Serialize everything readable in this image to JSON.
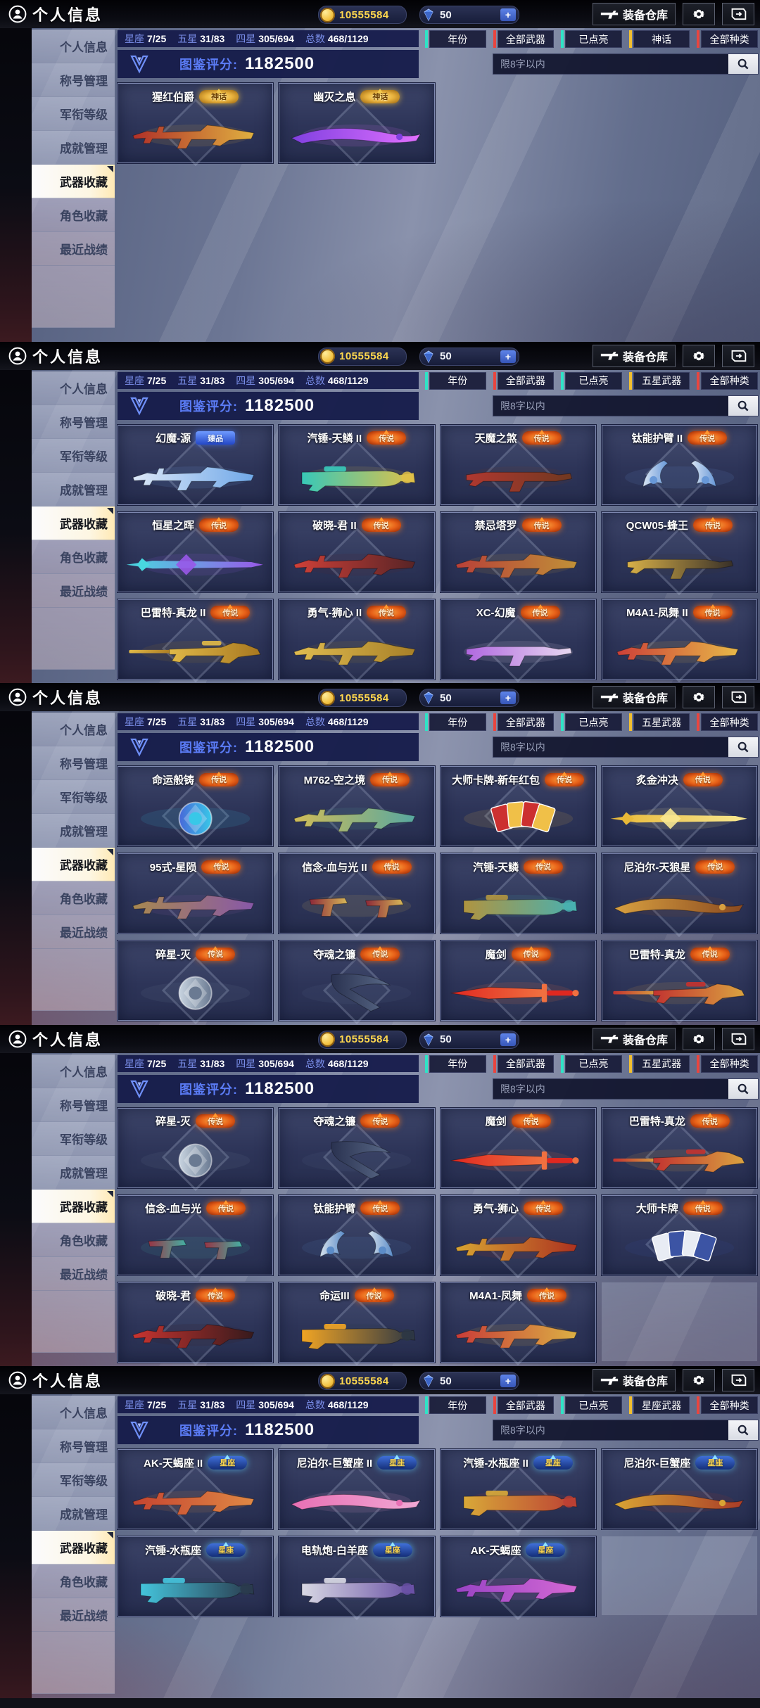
{
  "header": {
    "title": "个人信息",
    "coins": "10555584",
    "diamonds": "50",
    "plus_label": "+",
    "warehouse_label": "装备仓库"
  },
  "icons": {
    "profile": "person-circle",
    "coin": "gold-coin",
    "diamond": "blue-gem",
    "warehouse": "gun",
    "settings": "gear",
    "exit": "door-arrow",
    "search": "magnifier",
    "score": "v-shield"
  },
  "sidebar": {
    "items": [
      {
        "label": "个人信息",
        "active": false
      },
      {
        "label": "称号管理",
        "active": false
      },
      {
        "label": "军衔等级",
        "active": false
      },
      {
        "label": "成就管理",
        "active": false
      },
      {
        "label": "武器收藏",
        "active": true
      },
      {
        "label": "角色收藏",
        "active": false
      },
      {
        "label": "最近战绩",
        "active": false
      }
    ]
  },
  "stats": [
    {
      "label": "星座",
      "value": "7/25"
    },
    {
      "label": "五星",
      "value": "31/83"
    },
    {
      "label": "四星",
      "value": "305/694"
    },
    {
      "label": "总数",
      "value": "468/1129"
    }
  ],
  "score": {
    "label": "图鉴评分:",
    "value": "1182500"
  },
  "search": {
    "placeholder": "限8字以内"
  },
  "ui_colors": {
    "accent_teal": "#2fe3c6",
    "accent_red": "#e8453f",
    "accent_yellow": "#f2bf2f",
    "panel_navy": "#151b4a",
    "score_label": "#5b7cf6",
    "coin_text": "#ffd84e"
  },
  "panels": [
    {
      "filters": [
        {
          "label": "年份",
          "accent": "#2fe3c6"
        },
        {
          "label": "全部武器",
          "accent": "#e8453f"
        },
        {
          "label": "已点亮",
          "accent": "#2fe3c6"
        },
        {
          "label": "神话",
          "accent": "#f2bf2f"
        },
        {
          "label": "全部种类",
          "accent": "#e8453f"
        }
      ],
      "rows": [
        [
          {
            "name": "猩红伯爵",
            "badge": "神话",
            "shape": "rifle",
            "c1": "#b03028",
            "c2": "#e0b040"
          },
          {
            "name": "幽灭之息",
            "badge": "神话",
            "shape": "blade",
            "c1": "#8040e0",
            "c2": "#e070ff"
          }
        ]
      ]
    },
    {
      "filters": [
        {
          "label": "年份",
          "accent": "#2fe3c6"
        },
        {
          "label": "全部武器",
          "accent": "#e8453f"
        },
        {
          "label": "已点亮",
          "accent": "#2fe3c6"
        },
        {
          "label": "五星武器",
          "accent": "#f2bf2f"
        },
        {
          "label": "全部种类",
          "accent": "#e8453f"
        }
      ],
      "rows": [
        [
          {
            "name": "幻魔-源",
            "badge": "臻品",
            "shape": "rifle",
            "c1": "#dce8f8",
            "c2": "#70a8e8"
          },
          {
            "name": "汽锤-天鳞 II",
            "badge": "传说",
            "shape": "launcher",
            "c1": "#38c8b8",
            "c2": "#e0c048"
          },
          {
            "name": "天魔之煞",
            "badge": "传说",
            "shape": "smg",
            "c1": "#b03830",
            "c2": "#703820"
          },
          {
            "name": "钛能护臂 II",
            "badge": "传说",
            "shape": "bracers",
            "c1": "#d8e4f4",
            "c2": "#6898d8"
          }
        ],
        [
          {
            "name": "恒星之晖",
            "badge": "传说",
            "shape": "spear",
            "c1": "#48d8e0",
            "c2": "#9858e8"
          },
          {
            "name": "破晓-君 II",
            "badge": "传说",
            "shape": "rifle",
            "c1": "#d04038",
            "c2": "#582426"
          },
          {
            "name": "禁忌塔罗",
            "badge": "传说",
            "shape": "rifle",
            "c1": "#b84038",
            "c2": "#c09038"
          },
          {
            "name": "QCW05-蜂王",
            "badge": "传说",
            "shape": "smg",
            "c1": "#d8b048",
            "c2": "#383028"
          }
        ],
        [
          {
            "name": "巴雷特-真龙 II",
            "badge": "传说",
            "shape": "sniper",
            "c1": "#e0b848",
            "c2": "#a87820"
          },
          {
            "name": "勇气-狮心 II",
            "badge": "传说",
            "shape": "rifle",
            "c1": "#e0bc50",
            "c2": "#a88028"
          },
          {
            "name": "XC-幻魔",
            "badge": "传说",
            "shape": "smg",
            "c1": "#b068e0",
            "c2": "#e8d8f0"
          },
          {
            "name": "M4A1-凤舞 II",
            "badge": "传说",
            "shape": "rifle",
            "c1": "#cc4038",
            "c2": "#e8b848"
          }
        ]
      ]
    },
    {
      "filters": [
        {
          "label": "年份",
          "accent": "#2fe3c6"
        },
        {
          "label": "全部武器",
          "accent": "#e8453f"
        },
        {
          "label": "已点亮",
          "accent": "#2fe3c6"
        },
        {
          "label": "五星武器",
          "accent": "#f2bf2f"
        },
        {
          "label": "全部种类",
          "accent": "#e8453f"
        }
      ],
      "rows": [
        [
          {
            "name": "命运般铸",
            "badge": "传说",
            "shape": "orb",
            "c1": "#4868d8",
            "c2": "#38c8e8"
          },
          {
            "name": "M762-空之境",
            "badge": "传说",
            "shape": "rifle",
            "c1": "#d0bc58",
            "c2": "#58a8a0"
          },
          {
            "name": "大师卡牌-新年红包",
            "badge": "传说",
            "shape": "cards",
            "c1": "#cc3030",
            "c2": "#f0c048"
          },
          {
            "name": "炙金冲决",
            "badge": "传说",
            "shape": "spear",
            "c1": "#e8b838",
            "c2": "#f8e890"
          }
        ],
        [
          {
            "name": "95式-星陨",
            "badge": "传说",
            "shape": "rifle",
            "c1": "#a88850",
            "c2": "#8858a8"
          },
          {
            "name": "信念-血与光 II",
            "badge": "传说",
            "shape": "pistols",
            "c1": "#8c2838",
            "c2": "#d8b858"
          },
          {
            "name": "汽锤-天鳞",
            "badge": "传说",
            "shape": "launcher",
            "c1": "#b09440",
            "c2": "#48b0b0"
          },
          {
            "name": "尼泊尔-天狼星",
            "badge": "传说",
            "shape": "blade",
            "c1": "#d8a040",
            "c2": "#8a4a20"
          }
        ],
        [
          {
            "name": "碎星-灭",
            "badge": "传说",
            "shape": "orb",
            "c1": "#c8d4e0",
            "c2": "#6a7a92"
          },
          {
            "name": "夺魂之镰",
            "badge": "传说",
            "shape": "scythe",
            "c1": "#2a3250",
            "c2": "#5a6a88"
          },
          {
            "name": "魔剑",
            "badge": "传说",
            "shape": "sword",
            "c1": "#e02820",
            "c2": "#f07040"
          },
          {
            "name": "巴雷特-真龙",
            "badge": "传说",
            "shape": "sniper",
            "c1": "#c23330",
            "c2": "#daa340"
          }
        ]
      ]
    },
    {
      "filters": [
        {
          "label": "年份",
          "accent": "#2fe3c6"
        },
        {
          "label": "全部武器",
          "accent": "#e8453f"
        },
        {
          "label": "已点亮",
          "accent": "#2fe3c6"
        },
        {
          "label": "五星武器",
          "accent": "#f2bf2f"
        },
        {
          "label": "全部种类",
          "accent": "#e8453f"
        }
      ],
      "rows": [
        [
          {
            "name": "碎星-灭",
            "badge": "传说",
            "shape": "orb",
            "c1": "#c8d4e0",
            "c2": "#6a7a92"
          },
          {
            "name": "夺魂之镰",
            "badge": "传说",
            "shape": "scythe",
            "c1": "#2a3250",
            "c2": "#5a6a88"
          },
          {
            "name": "魔剑",
            "badge": "传说",
            "shape": "sword",
            "c1": "#e02820",
            "c2": "#f07040"
          },
          {
            "name": "巴雷特-真龙",
            "badge": "传说",
            "shape": "sniper",
            "c1": "#c23330",
            "c2": "#daa340"
          }
        ],
        [
          {
            "name": "信念-血与光",
            "badge": "传说",
            "shape": "pistols",
            "c1": "#983444",
            "c2": "#44b0a4"
          },
          {
            "name": "钛能护臂",
            "badge": "传说",
            "shape": "bracers",
            "c1": "#d4e0ec",
            "c2": "#5c8cc8"
          },
          {
            "name": "勇气-狮心",
            "badge": "传说",
            "shape": "rifle",
            "c1": "#d8a432",
            "c2": "#ac3220"
          },
          {
            "name": "大师卡牌",
            "badge": "传说",
            "shape": "cards",
            "c1": "#e8ecf4",
            "c2": "#3c54a4"
          }
        ],
        [
          {
            "name": "破晓-君",
            "badge": "传说",
            "shape": "rifle",
            "c1": "#c83430",
            "c2": "#361a1c"
          },
          {
            "name": "命运III",
            "badge": "传说",
            "shape": "launcher",
            "c1": "#f0a424",
            "c2": "#2c3644"
          },
          {
            "name": "M4A1-凤舞",
            "badge": "传说",
            "shape": "rifle",
            "c1": "#c83c38",
            "c2": "#dcb044"
          },
          {
            "empty": true
          }
        ]
      ]
    },
    {
      "filters": [
        {
          "label": "年份",
          "accent": "#2fe3c6"
        },
        {
          "label": "全部武器",
          "accent": "#e8453f"
        },
        {
          "label": "已点亮",
          "accent": "#2fe3c6"
        },
        {
          "label": "星座武器",
          "accent": "#f2bf2f"
        },
        {
          "label": "全部种类",
          "accent": "#e8453f"
        }
      ],
      "rows": [
        [
          {
            "name": "AK-天蝎座 II",
            "badge": "星座",
            "shape": "rifle",
            "c1": "#c44430",
            "c2": "#e08844"
          },
          {
            "name": "尼泊尔-巨蟹座 II",
            "badge": "星座",
            "shape": "blade",
            "c1": "#e870b4",
            "c2": "#f0a8d4"
          },
          {
            "name": "汽锤-水瓶座 II",
            "badge": "星座",
            "shape": "launcher",
            "c1": "#d8a838",
            "c2": "#bc4034"
          },
          {
            "name": "尼泊尔-巨蟹座",
            "badge": "星座",
            "shape": "blade",
            "c1": "#d8a434",
            "c2": "#a83c28"
          }
        ],
        [
          {
            "name": "汽锤-水瓶座",
            "badge": "星座",
            "shape": "launcher",
            "c1": "#44c4dc",
            "c2": "#2a3a4c"
          },
          {
            "name": "电轨炮-白羊座",
            "badge": "星座",
            "shape": "launcher",
            "c1": "#d8d8e4",
            "c2": "#6850a4"
          },
          {
            "name": "AK-天蝎座",
            "badge": "星座",
            "shape": "rifle",
            "c1": "#9844c4",
            "c2": "#d468d4"
          },
          {
            "empty": true
          }
        ]
      ]
    }
  ]
}
